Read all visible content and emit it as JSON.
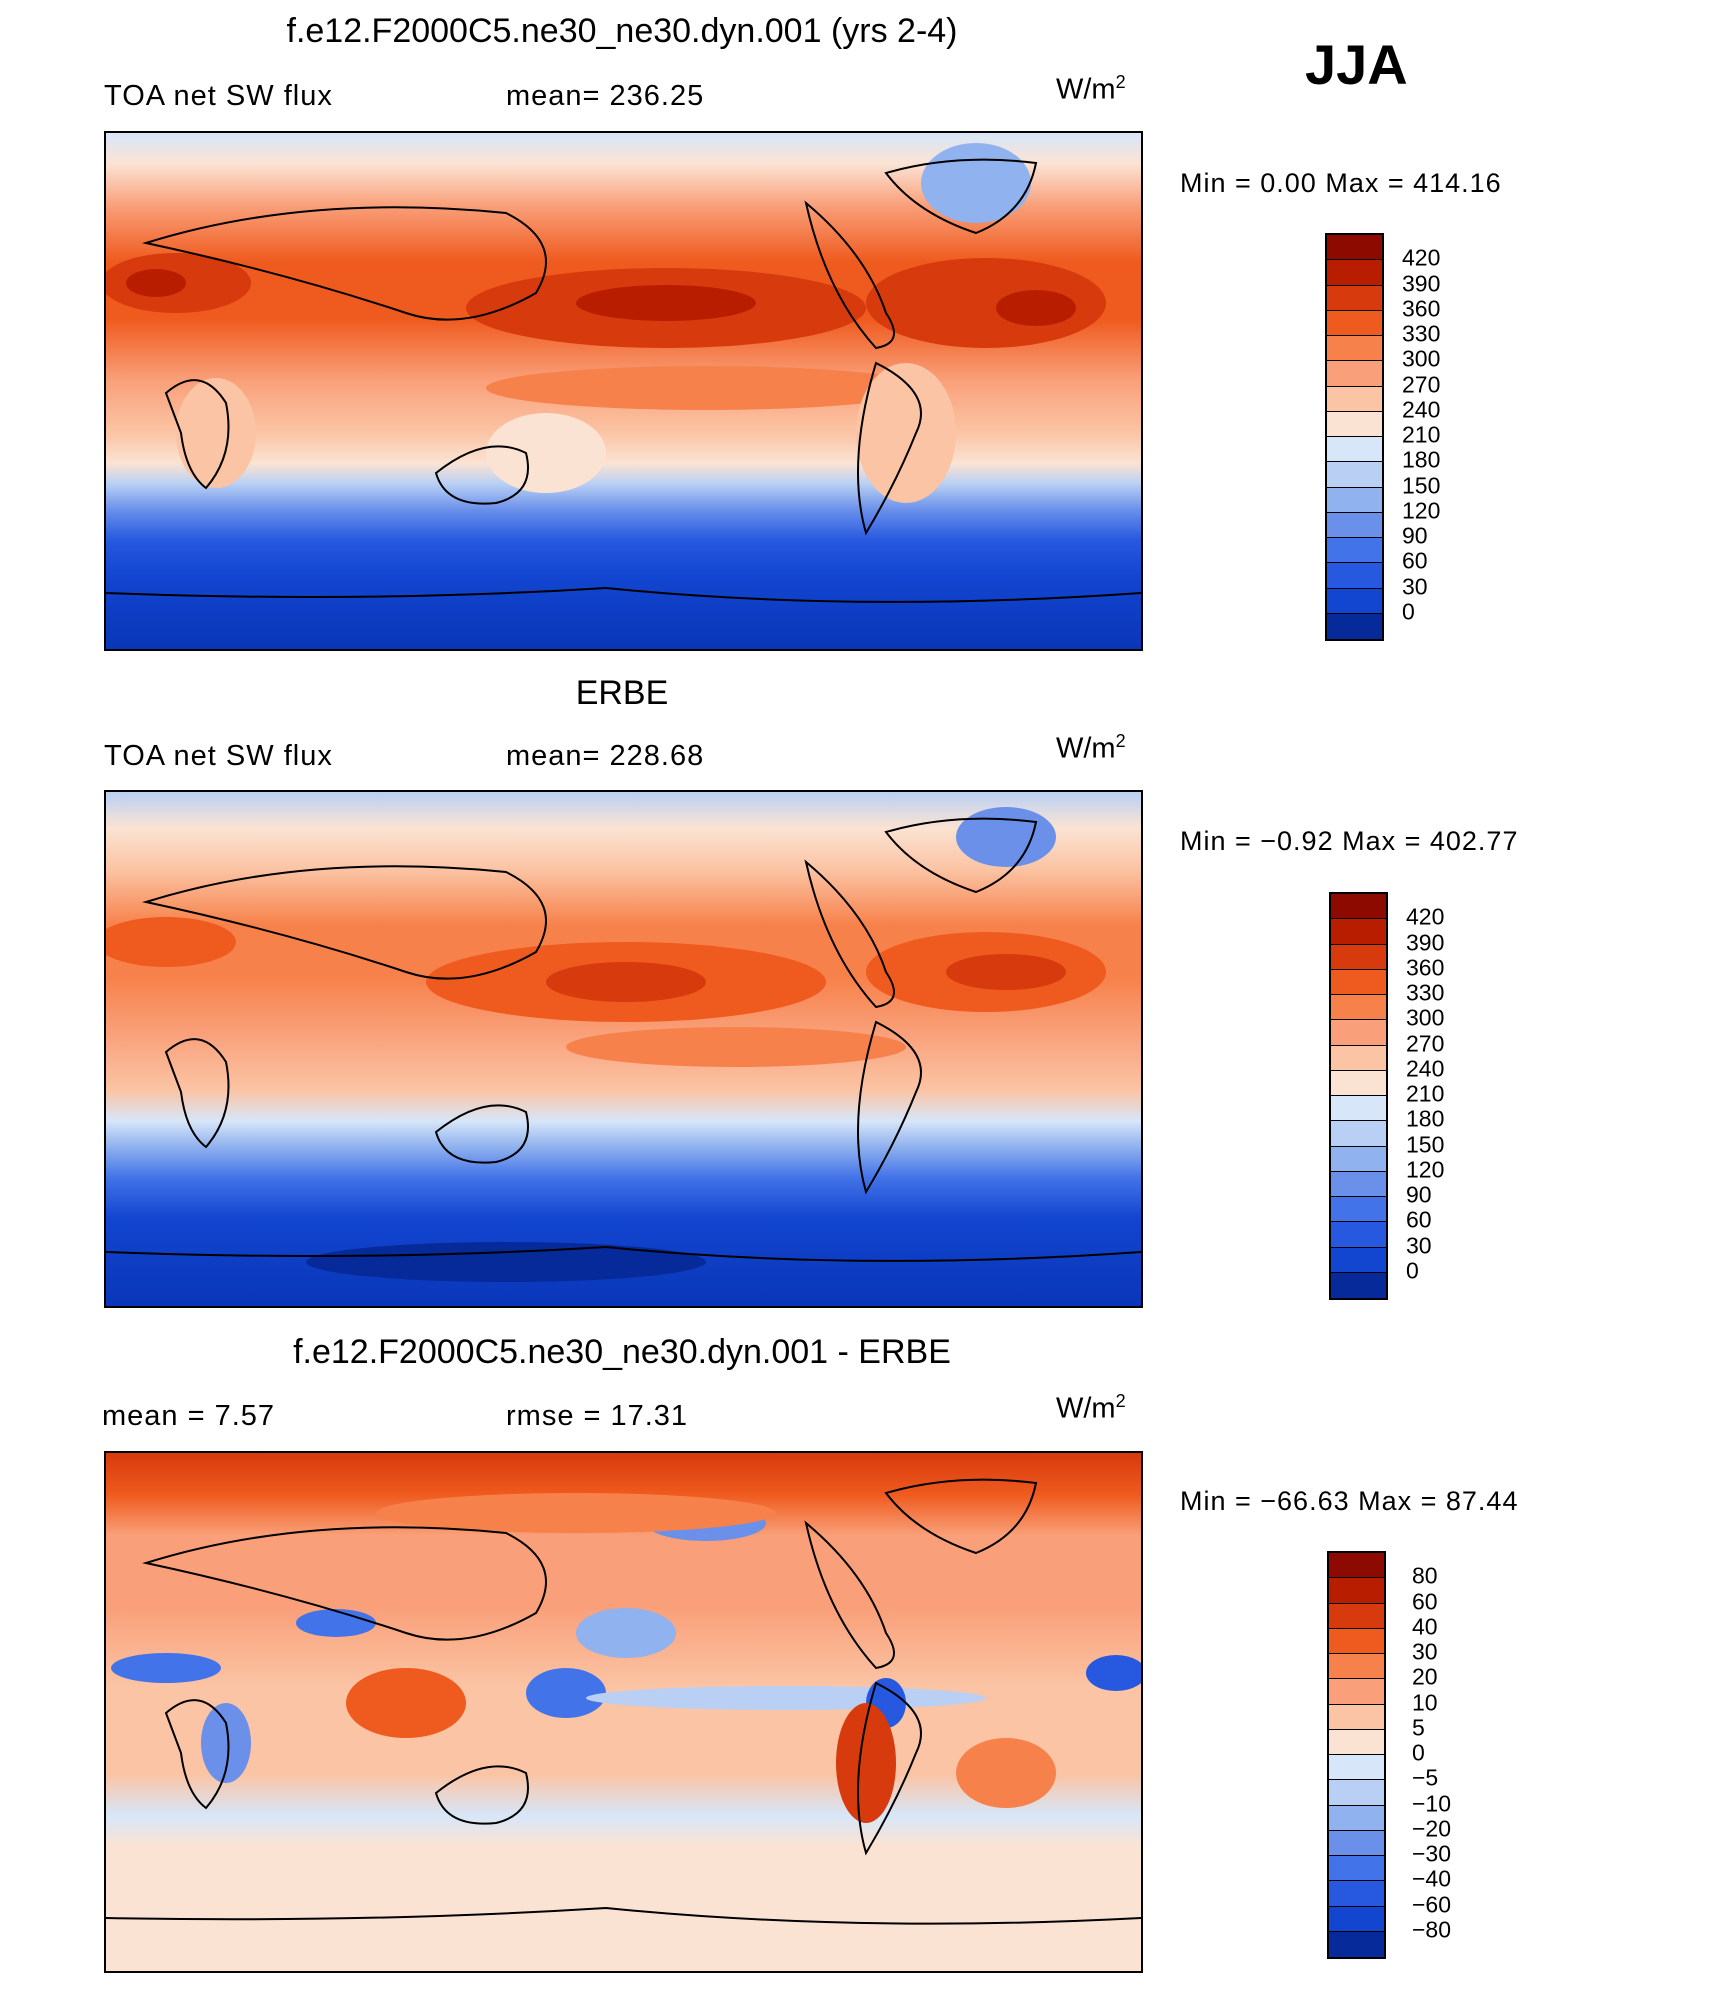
{
  "season": "JJA",
  "panels": [
    {
      "id": "model",
      "title": "f.e12.F2000C5.ne30_ne30.dyn.001 (yrs 2-4)",
      "left_label": "TOA net SW flux",
      "stat_label": "mean= 236.25",
      "units_base": "W/m",
      "units_sup": "2",
      "minmax": "Min =    0.00 Max = 414.16",
      "colorbar_labels": [
        "420",
        "390",
        "360",
        "330",
        "300",
        "270",
        "240",
        "210",
        "180",
        "150",
        "120",
        "90",
        "60",
        "30",
        "0"
      ],
      "colorbar_colors": [
        "#8c0a00",
        "#b81d00",
        "#d73a0c",
        "#ef5a1e",
        "#f7814a",
        "#f9a07a",
        "#fbc4a4",
        "#fbe3d3",
        "#d7e6f9",
        "#b9d0f4",
        "#90b2ee",
        "#6a90ea",
        "#4373e8",
        "#2658e0",
        "#1245d0",
        "#062a9a"
      ]
    },
    {
      "id": "obs",
      "title": "ERBE",
      "left_label": "TOA net SW flux",
      "stat_label": "mean= 228.68",
      "units_base": "W/m",
      "units_sup": "2",
      "minmax": "Min =  −0.92 Max = 402.77",
      "colorbar_labels": [
        "420",
        "390",
        "360",
        "330",
        "300",
        "270",
        "240",
        "210",
        "180",
        "150",
        "120",
        "90",
        "60",
        "30",
        "0"
      ],
      "colorbar_colors": [
        "#8c0a00",
        "#b81d00",
        "#d73a0c",
        "#ef5a1e",
        "#f7814a",
        "#f9a07a",
        "#fbc4a4",
        "#fbe3d3",
        "#d7e6f9",
        "#b9d0f4",
        "#90b2ee",
        "#6a90ea",
        "#4373e8",
        "#2658e0",
        "#1245d0",
        "#062a9a"
      ]
    },
    {
      "id": "diff",
      "title": "f.e12.F2000C5.ne30_ne30.dyn.001 - ERBE",
      "left_label": "mean =    7.57",
      "stat_label": "rmse =   17.31",
      "units_base": "W/m",
      "units_sup": "2",
      "minmax": "Min = −66.63 Max =   87.44",
      "colorbar_labels": [
        "80",
        "60",
        "40",
        "30",
        "20",
        "10",
        "5",
        "0",
        "−5",
        "−10",
        "−20",
        "−30",
        "−40",
        "−60",
        "−80"
      ],
      "colorbar_colors": [
        "#8c0a00",
        "#b81d00",
        "#d73a0c",
        "#ef5a1e",
        "#f7814a",
        "#f9a07a",
        "#fbc4a4",
        "#fbe3d3",
        "#d7e6f9",
        "#b9d0f4",
        "#90b2ee",
        "#6a90ea",
        "#4373e8",
        "#2658e0",
        "#1245d0",
        "#062a9a"
      ]
    }
  ]
}
